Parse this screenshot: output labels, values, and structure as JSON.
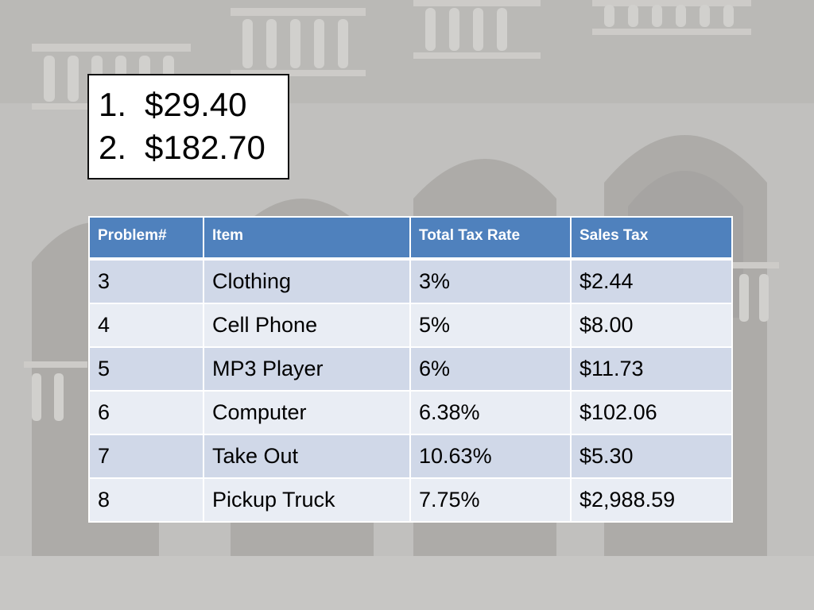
{
  "answers": [
    {
      "number": "1.",
      "value": "$29.40"
    },
    {
      "number": "2.",
      "value": "$182.70"
    }
  ],
  "table": {
    "headers": [
      "Problem#",
      "Item",
      "Total Tax Rate",
      "Sales Tax"
    ],
    "rows": [
      [
        "3",
        "Clothing",
        "3%",
        "$2.44"
      ],
      [
        "4",
        "Cell Phone",
        "5%",
        "$8.00"
      ],
      [
        "5",
        "MP3 Player",
        "6%",
        "$11.73"
      ],
      [
        "6",
        "Computer",
        "6.38%",
        "$102.06"
      ],
      [
        "7",
        "Take Out",
        "10.63%",
        "$5.30"
      ],
      [
        "8",
        "Pickup Truck",
        "7.75%",
        "$2,988.59"
      ]
    ]
  },
  "colors": {
    "header_bg": "#4f81bd",
    "row_odd_bg": "#d0d8e8",
    "row_even_bg": "#e9edf4",
    "background": "#b9b8b6"
  }
}
